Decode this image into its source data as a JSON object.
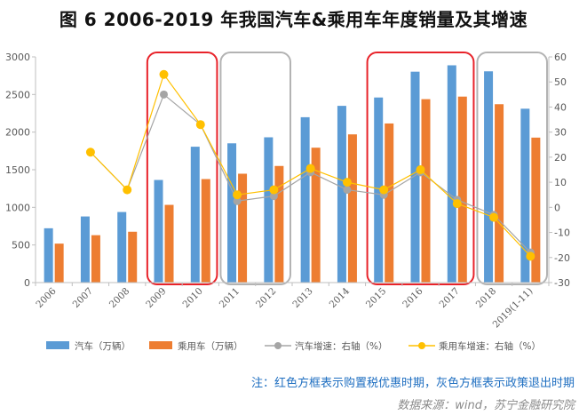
{
  "title": "图 6    2006-2019 年我国汽车&乘用车年度销量及其增速",
  "note": "注：红色方框表示购置税优惠时期，灰色方框表示政策退出时期",
  "source": "数据来源：wind，苏宁金融研究院",
  "chart_data": {
    "type": "bar",
    "categories": [
      "2006",
      "2007",
      "2008",
      "2009",
      "2010",
      "2011",
      "2012",
      "2013",
      "2014",
      "2015",
      "2016",
      "2017",
      "2018",
      "2019(1-11)"
    ],
    "ylim": [
      0,
      3000
    ],
    "ylim_right": [
      -30,
      60
    ],
    "y_ticks": [
      0,
      500,
      1000,
      1500,
      2000,
      2500,
      3000
    ],
    "y_right_ticks": [
      -30,
      -20,
      -10,
      0,
      10,
      20,
      30,
      40,
      50,
      60
    ],
    "grid": false,
    "legend_position": "bottom",
    "series": [
      {
        "name": "汽车（万辆）",
        "type": "bar",
        "axis": "left",
        "color": "#5b9bd5",
        "values": [
          722,
          879,
          938,
          1364,
          1806,
          1851,
          1931,
          2198,
          2349,
          2460,
          2803,
          2888,
          2808,
          2311
        ]
      },
      {
        "name": "乘用车（万辆）",
        "type": "bar",
        "axis": "left",
        "color": "#ed7d31",
        "values": [
          518,
          630,
          676,
          1033,
          1376,
          1447,
          1550,
          1793,
          1970,
          2115,
          2438,
          2472,
          2371,
          1927
        ]
      },
      {
        "name": "汽车增速：右轴（%）",
        "type": "line",
        "axis": "right",
        "color": "#a5a5a5",
        "values": [
          null,
          22,
          7,
          45,
          33,
          2.5,
          4.5,
          14,
          7,
          5,
          14,
          3,
          -3,
          -18
        ]
      },
      {
        "name": "乘用车增速：右轴（%）",
        "type": "line",
        "axis": "right",
        "color": "#ffc000",
        "values": [
          null,
          22,
          7,
          53,
          33,
          5,
          7,
          15.5,
          10,
          7,
          15,
          1.5,
          -4,
          -19.5
        ]
      }
    ],
    "highlight_boxes": [
      {
        "from": "2009",
        "to": "2010",
        "color": "#e8232a",
        "meaning": "购置税优惠时期"
      },
      {
        "from": "2011",
        "to": "2012",
        "color": "#b3b3b3",
        "meaning": "政策退出时期"
      },
      {
        "from": "2015",
        "to": "2017",
        "color": "#e8232a",
        "meaning": "购置税优惠时期"
      },
      {
        "from": "2018",
        "to": "2019(1-11)",
        "color": "#b3b3b3",
        "meaning": "政策退出时期"
      }
    ]
  }
}
